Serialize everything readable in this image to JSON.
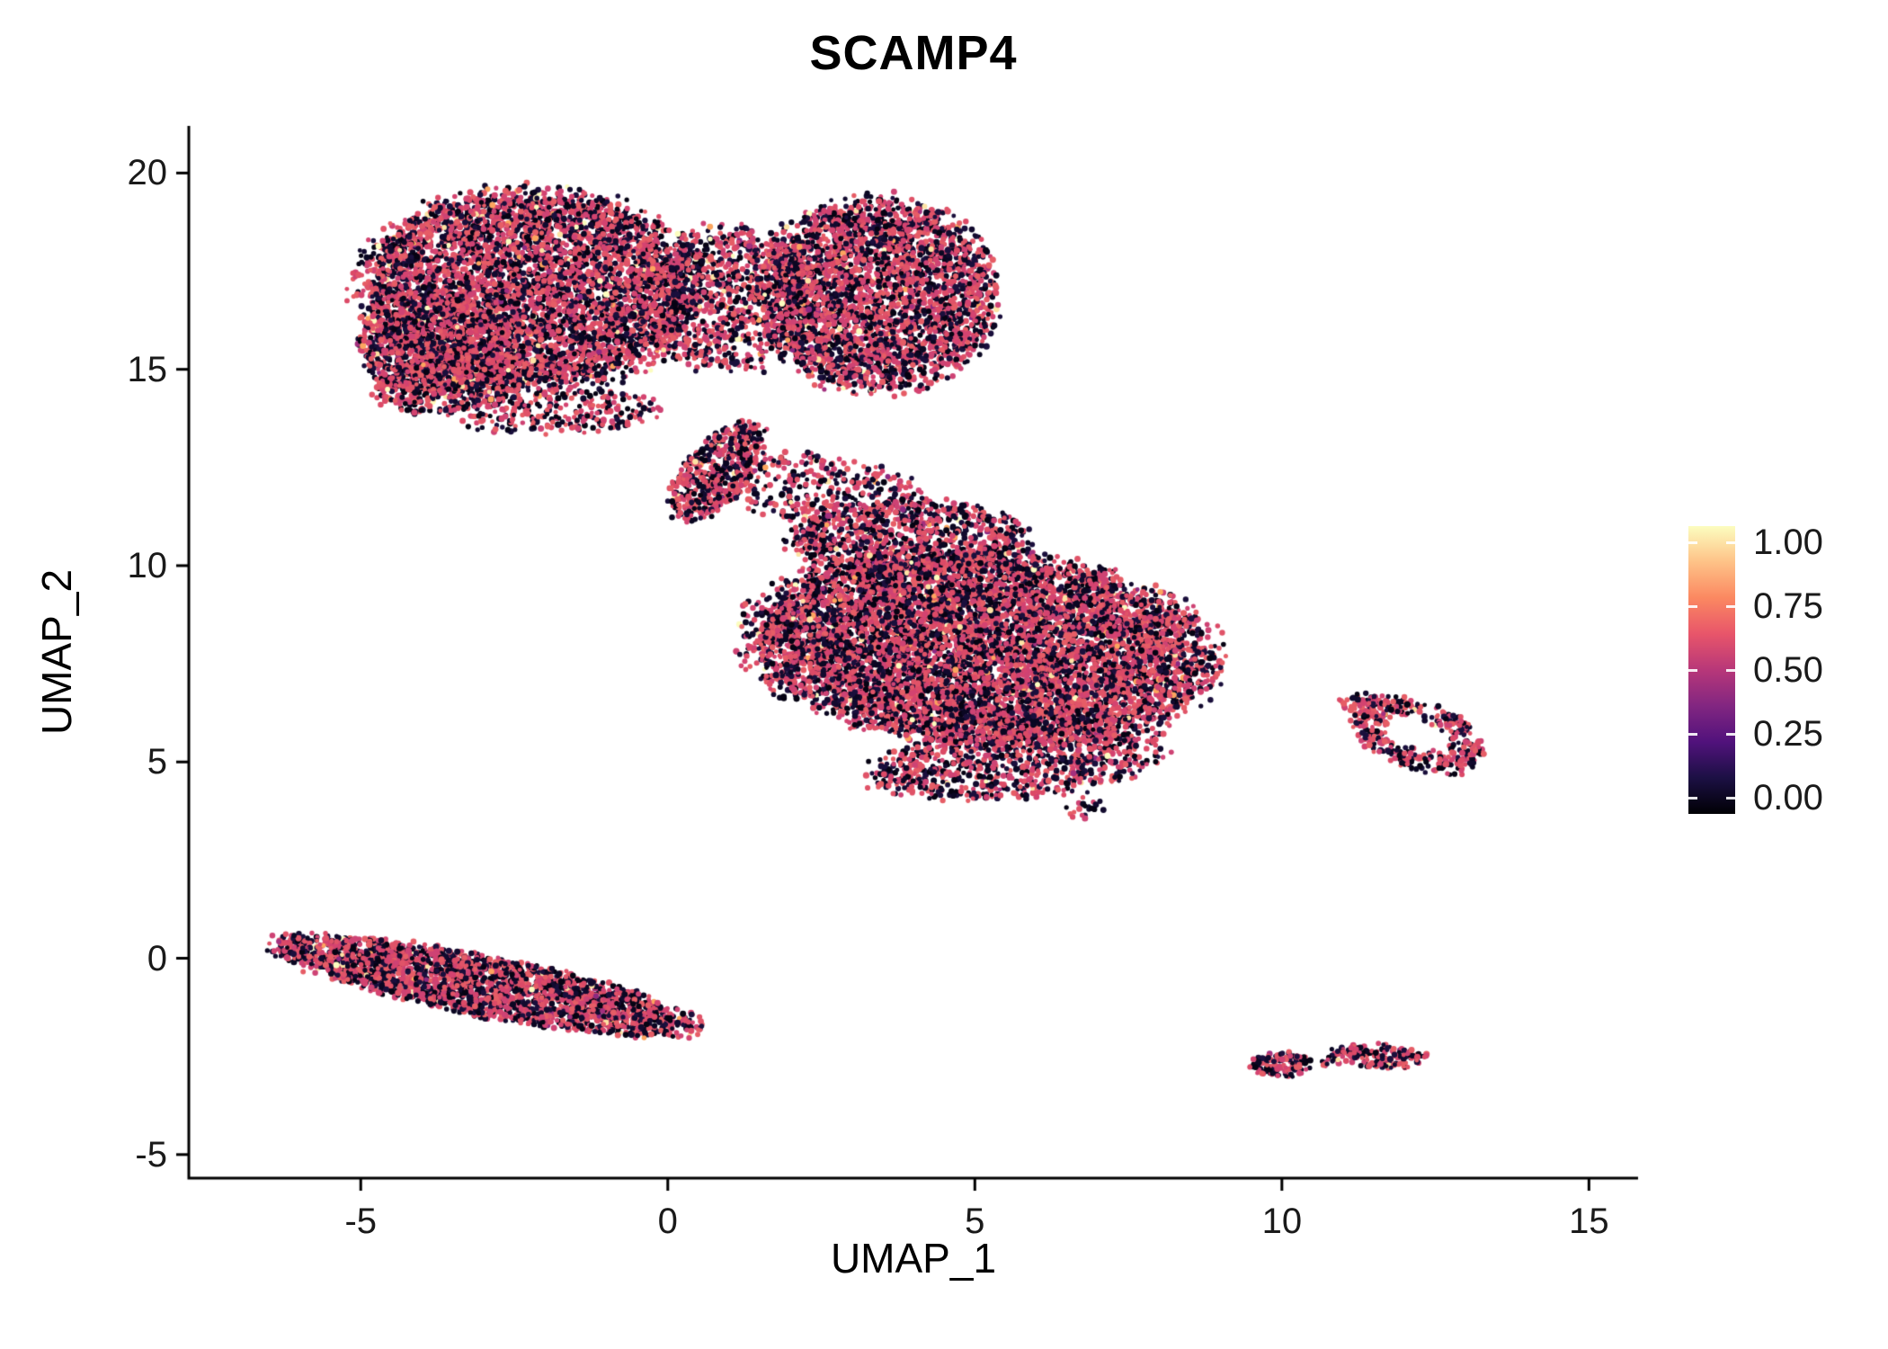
{
  "page": {
    "background": "#ffffff"
  },
  "chart_data": {
    "type": "scatter",
    "title": "SCAMP4",
    "xlabel": "UMAP_1",
    "ylabel": "UMAP_2",
    "xlim": [
      -7.8,
      15.8
    ],
    "ylim": [
      -5.6,
      21.2
    ],
    "x_tick_values": [
      -5,
      0,
      5,
      10,
      15
    ],
    "x_tick_labels": [
      "-5",
      "0",
      "5",
      "10",
      "15"
    ],
    "y_tick_values": [
      -5,
      0,
      5,
      10,
      15,
      20
    ],
    "y_tick_labels": [
      "-5",
      "0",
      "5",
      "10",
      "15",
      "20"
    ],
    "grid": false,
    "axis_color": "#000000",
    "tick_label_color": "#1a1a1a",
    "colorbar": {
      "position": "right",
      "tick_labels": [
        "1.00",
        "0.75",
        "0.50",
        "0.25",
        "0.00"
      ],
      "tick_values": [
        1.0,
        0.75,
        0.5,
        0.25,
        0.0
      ],
      "colormap_name": "magma",
      "colormap_stops": [
        "#000004",
        "#1c1044",
        "#51127c",
        "#822681",
        "#b73779",
        "#e8556a",
        "#fb8861",
        "#fec287",
        "#fcfdbf"
      ]
    },
    "points": {
      "radius_px": [
        2.4,
        3.6
      ],
      "palette": {
        "low": [
          "#0b0722",
          "#120a2e",
          "#060313",
          "#1a0f3c"
        ],
        "mid": [
          "#dc4a67",
          "#e05368",
          "#d44370",
          "#e65d66",
          "#ce4374"
        ],
        "purple": [
          "#8c2981",
          "#a3307e"
        ],
        "high": [
          "#fcfdbf",
          "#fde3a4",
          "#fca55f"
        ]
      },
      "weights": {
        "low": 0.44,
        "mid": 0.535,
        "purple": 0.005,
        "high": 0.02
      }
    },
    "clusters": [
      {
        "name": "upper-left-main",
        "cx": -2.3,
        "cy": 17.0,
        "rx": 2.7,
        "ry": 2.5,
        "rot": 0,
        "n": 5200
      },
      {
        "name": "upper-left-west-lobe",
        "cx": -3.8,
        "cy": 15.6,
        "rx": 1.2,
        "ry": 1.3,
        "rot": 0,
        "n": 800
      },
      {
        "name": "upper-left-lower-lobe",
        "cx": -3.5,
        "cy": 14.7,
        "rx": 1.3,
        "ry": 0.8,
        "rot": 15,
        "n": 600
      },
      {
        "name": "upper-right-lobe",
        "cx": 3.4,
        "cy": 16.9,
        "rx": 1.9,
        "ry": 2.4,
        "rot": 0,
        "n": 3300
      },
      {
        "name": "upper-neck",
        "cx": 1.0,
        "cy": 16.8,
        "rx": 1.4,
        "ry": 1.8,
        "rot": 0,
        "n": 1000
      },
      {
        "name": "upper-straggle",
        "cx": -1.7,
        "cy": 13.9,
        "rx": 1.6,
        "ry": 0.55,
        "rot": 5,
        "n": 260
      },
      {
        "name": "bridge-stream",
        "cx": 0.8,
        "cy": 12.4,
        "rx": 0.55,
        "ry": 1.35,
        "rot": -25,
        "n": 520
      },
      {
        "name": "bridge-fan",
        "cx": 2.4,
        "cy": 12.0,
        "rx": 1.7,
        "ry": 0.85,
        "rot": -10,
        "n": 380
      },
      {
        "name": "center-top-lobe",
        "cx": 3.9,
        "cy": 10.7,
        "rx": 1.9,
        "ry": 0.95,
        "rot": 0,
        "n": 950
      },
      {
        "name": "center-main",
        "cx": 5.1,
        "cy": 7.9,
        "rx": 3.7,
        "ry": 2.35,
        "rot": -8,
        "n": 8000
      },
      {
        "name": "center-south-rim",
        "cx": 5.7,
        "cy": 5.0,
        "rx": 2.4,
        "ry": 0.9,
        "rot": 8,
        "n": 900
      },
      {
        "name": "center-tail",
        "cx": 6.8,
        "cy": 3.8,
        "rx": 0.3,
        "ry": 0.3,
        "rot": 0,
        "n": 20
      },
      {
        "name": "right-island",
        "cx": 12.2,
        "cy": 5.7,
        "rx": 1.2,
        "ry": 0.75,
        "rot": -38,
        "n": 390,
        "hole": 0.4
      },
      {
        "name": "right-island-sparse",
        "cx": 11.3,
        "cy": 6.5,
        "rx": 0.45,
        "ry": 0.25,
        "rot": 0,
        "n": 35
      },
      {
        "name": "lower-left-band",
        "cx": -3.0,
        "cy": -0.7,
        "rx": 3.5,
        "ry": 0.72,
        "rot": -17,
        "n": 2700
      },
      {
        "name": "bottom-small-west",
        "cx": 10.0,
        "cy": -2.7,
        "rx": 0.5,
        "ry": 0.32,
        "rot": 0,
        "n": 120
      },
      {
        "name": "bottom-small-east",
        "cx": 11.6,
        "cy": -2.5,
        "rx": 0.78,
        "ry": 0.3,
        "rot": -8,
        "n": 160
      },
      {
        "name": "bottom-small-mid",
        "cx": 10.75,
        "cy": -2.62,
        "rx": 0.28,
        "ry": 0.12,
        "rot": 0,
        "n": 14
      }
    ]
  }
}
